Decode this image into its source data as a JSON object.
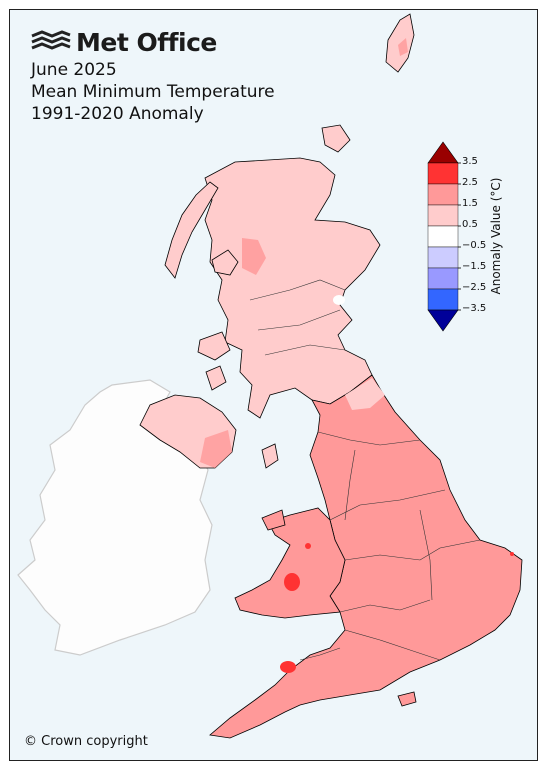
{
  "brand": {
    "name": "Met Office"
  },
  "title": {
    "line1": "June 2025",
    "line2": "Mean Minimum Temperature",
    "line3": "1991-2020 Anomaly"
  },
  "colorbar": {
    "label": "Anomaly Value (°C)",
    "ticks": [
      "3.5",
      "2.5",
      "1.5",
      "0.5",
      "−0.5",
      "−1.5",
      "−2.5",
      "−3.5"
    ],
    "bins": [
      {
        "from": 2.5,
        "to": 3.5,
        "color": "#ff3333"
      },
      {
        "from": 1.5,
        "to": 2.5,
        "color": "#ff9999"
      },
      {
        "from": 0.5,
        "to": 1.5,
        "color": "#ffcccc"
      },
      {
        "from": -0.5,
        "to": 0.5,
        "color": "#ffffff"
      },
      {
        "from": -1.5,
        "to": -0.5,
        "color": "#ccccff"
      },
      {
        "from": -2.5,
        "to": -1.5,
        "color": "#9999ff"
      },
      {
        "from": -3.5,
        "to": -2.5,
        "color": "#3366ff"
      }
    ],
    "over_color": "#990000",
    "under_color": "#000099"
  },
  "copyright": "© Crown copyright",
  "colors": {
    "sea": "#eef6fa",
    "ireland": "#fdfdfd",
    "ireland_border": "#cccccc",
    "outline": "#000000"
  }
}
